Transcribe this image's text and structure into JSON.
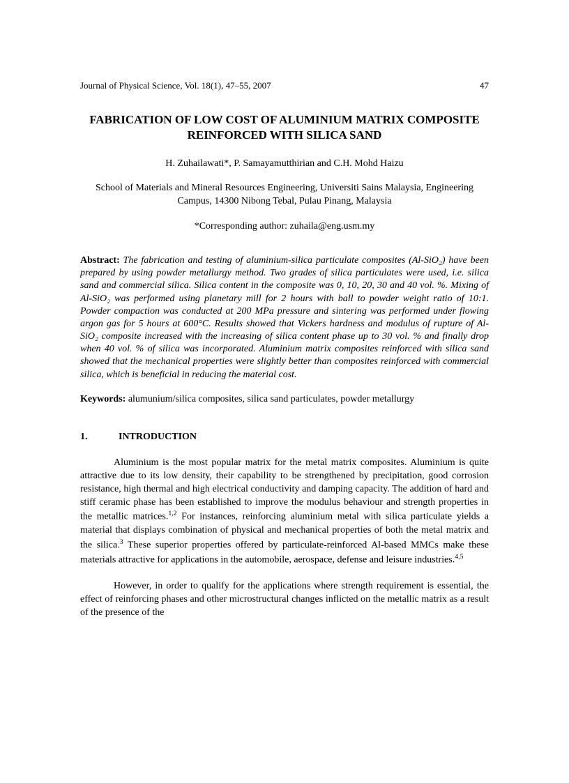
{
  "header": {
    "journal": "Journal of Physical Science, Vol. 18(1), 47–55, 2007",
    "page": "47"
  },
  "title": "FABRICATION OF LOW COST OF ALUMINIUM MATRIX COMPOSITE REINFORCED WITH SILICA SAND",
  "authors": "H. Zuhailawati*, P. Samayamutthirian and C.H. Mohd Haizu",
  "affiliation": "School of Materials and Mineral Resources Engineering, Universiti Sains Malaysia, Engineering Campus, 14300 Nibong Tebal, Pulau Pinang, Malaysia",
  "corresponding": "*Corresponding author: zuhaila@eng.usm.my",
  "abstract": {
    "label": "Abstract:",
    "text": "The fabrication and testing of aluminium-silica particulate composites (Al-SiO₂) have been prepared by using powder metallurgy method. Two grades of silica particulates were used, i.e. silica sand and commercial silica. Silica content in the composite was 0, 10, 20, 30 and 40 vol. %. Mixing of Al-SiO₂ was performed using planetary mill for 2 hours with ball to powder weight ratio of 10:1. Powder compaction was conducted at 200 MPa pressure and sintering was performed under flowing argon gas for 5 hours at 600°C. Results showed that Vickers hardness and modulus of rupture of Al-SiO₂ composite increased with the increasing of silica content phase up to 30 vol. % and finally drop when 40 vol. % of silica was incorporated. Aluminium matrix composites reinforced with silica sand showed that the mechanical properties were slightly better than composites reinforced with commercial silica, which is beneficial in reducing the material cost."
  },
  "keywords": {
    "label": "Keywords:",
    "text": "alumunium/silica composites, silica sand particulates, powder metallurgy"
  },
  "section": {
    "number": "1.",
    "title": "INTRODUCTION"
  },
  "para1": {
    "part1": "Aluminium is the most popular matrix for the metal matrix composites. Aluminium is quite attractive due to its low density, their capability to be strengthened by precipitation, good corrosion resistance, high thermal and high electrical conductivity and damping capacity. The addition of hard and stiff ceramic phase has been established to improve the modulus behaviour and strength properties in the metallic matrices.",
    "sup1": "1,2",
    "part2": " For instances, reinforcing aluminium metal with silica particulate yields a material that displays combination of physical and mechanical properties of both the metal matrix and the silica.",
    "sup2": "3",
    "part3": " These superior properties offered by particulate-reinforced Al-based MMCs make these materials attractive for applications in the automobile, aerospace, defense and leisure industries.",
    "sup3": "4,5"
  },
  "para2": "However, in order to qualify for the applications where strength requirement is essential, the effect of reinforcing phases and other microstructural changes inflicted on the metallic matrix as a result of the presence of the"
}
